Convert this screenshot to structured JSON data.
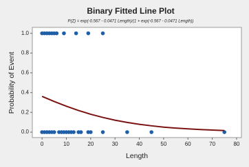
{
  "chart_data": {
    "type": "scatter",
    "title": "Binary Fitted Line Plot",
    "subtitle": "P(Z) = exp(-0.567 - 0.0471 Length)/(1 + exp(-0.567 - 0.0471 Length))",
    "x_label": "Length",
    "y_label": "Probability of Event",
    "xlim": [
      -4,
      82
    ],
    "ylim": [
      -0.055,
      1.06
    ],
    "xticks": [
      0,
      10,
      20,
      30,
      40,
      50,
      60,
      70,
      80
    ],
    "yticks": [
      {
        "value": 0,
        "label": "0.0"
      },
      {
        "value": 0.2,
        "label": "0.2"
      },
      {
        "value": 0.4,
        "label": "0.4"
      },
      {
        "value": 0.6,
        "label": "0.6"
      },
      {
        "value": 0.8,
        "label": "0.8"
      },
      {
        "value": 1,
        "label": "1.0"
      }
    ],
    "grid": false,
    "series": [
      {
        "type": "scatter",
        "color": "#1f5fa8",
        "x": [
          0,
          1,
          2,
          3,
          4,
          5,
          6,
          9,
          14,
          19,
          25,
          0,
          1,
          2,
          3,
          4,
          5,
          7,
          8,
          9,
          10,
          11,
          12,
          13,
          15,
          16,
          19,
          20,
          25,
          35,
          45,
          75
        ],
        "values": [
          1,
          1,
          1,
          1,
          1,
          1,
          1,
          1,
          1,
          1,
          1,
          0,
          0,
          0,
          0,
          0,
          0,
          0,
          0,
          0,
          0,
          0,
          0,
          0,
          0,
          0,
          0,
          0,
          0,
          0,
          0,
          0
        ]
      },
      {
        "type": "line",
        "color": "#7a1212",
        "x": [
          0,
          5,
          10,
          15,
          20,
          25,
          30,
          35,
          40,
          45,
          50,
          55,
          60,
          65,
          70,
          75
        ],
        "values": [
          0.362,
          0.31,
          0.262,
          0.219,
          0.181,
          0.149,
          0.121,
          0.098,
          0.079,
          0.064,
          0.051,
          0.041,
          0.033,
          0.026,
          0.021,
          0.016
        ]
      }
    ]
  }
}
